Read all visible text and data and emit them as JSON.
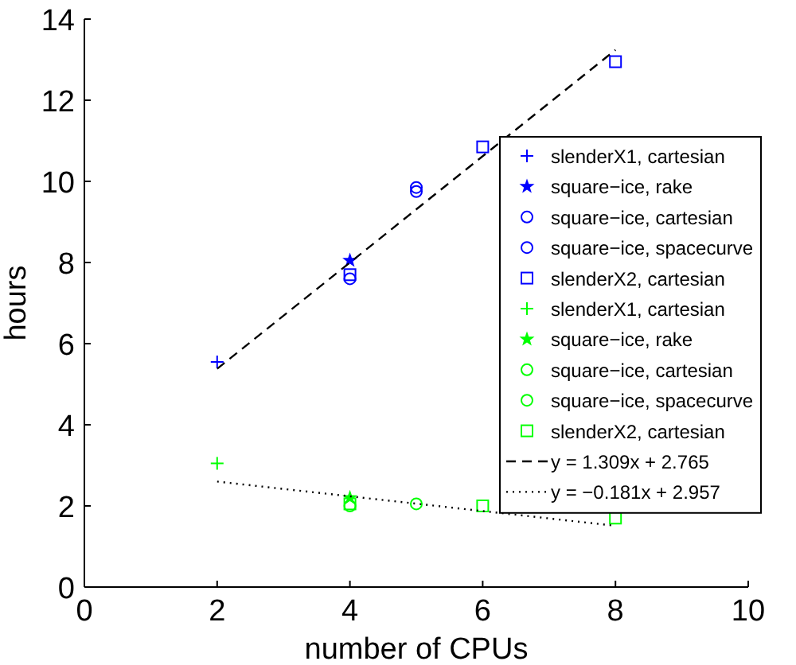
{
  "chart_data": {
    "type": "scatter",
    "xlabel": "number of CPUs",
    "ylabel": "hours",
    "xlim": [
      0,
      10
    ],
    "xticks": [
      0,
      2,
      4,
      6,
      8,
      10
    ],
    "ylim": [
      0,
      14
    ],
    "yticks": [
      0,
      2,
      4,
      6,
      8,
      10,
      12,
      14
    ],
    "grid": false,
    "legend": "right",
    "series": [
      {
        "name": "slenderX1, cartesian",
        "color": "#0000ff",
        "marker": "cross",
        "x": [
          2
        ],
        "values": [
          5.55
        ]
      },
      {
        "name": "square−ice, rake",
        "color": "#0000ff",
        "marker": "star",
        "x": [
          4
        ],
        "values": [
          8.05
        ]
      },
      {
        "name": "square−ice, cartesian",
        "color": "#0000ff",
        "marker": "circle",
        "x": [
          4
        ],
        "values": [
          7.6
        ]
      },
      {
        "name": "square−ice, spacecurve",
        "color": "#0000ff",
        "marker": "circle",
        "x": [
          5,
          5
        ],
        "values": [
          9.75,
          9.85
        ]
      },
      {
        "name": "slenderX2, cartesian",
        "color": "#0000ff",
        "marker": "square",
        "x": [
          4,
          6,
          8
        ],
        "values": [
          7.7,
          10.85,
          12.95
        ]
      },
      {
        "name": "slenderX1, cartesian",
        "color": "#00ff00",
        "marker": "cross",
        "x": [
          2
        ],
        "values": [
          3.05
        ]
      },
      {
        "name": "square−ice, rake",
        "color": "#00ff00",
        "marker": "star",
        "x": [
          4
        ],
        "values": [
          2.2
        ]
      },
      {
        "name": "square−ice, cartesian",
        "color": "#00ff00",
        "marker": "circle",
        "x": [
          4
        ],
        "values": [
          2.0
        ]
      },
      {
        "name": "square−ice, spacecurve",
        "color": "#00ff00",
        "marker": "circle",
        "x": [
          5
        ],
        "values": [
          2.05
        ]
      },
      {
        "name": "slenderX2, cartesian",
        "color": "#00ff00",
        "marker": "square",
        "x": [
          4,
          6,
          8
        ],
        "values": [
          2.05,
          2.0,
          1.7
        ]
      },
      {
        "name": "y = 1.309x + 2.765",
        "type": "line",
        "color": "#000000",
        "line_style": "dashed",
        "marker": "none",
        "x": [
          2,
          8
        ],
        "values": [
          5.38,
          13.24
        ]
      },
      {
        "name": "y = −0.181x + 2.957",
        "type": "line",
        "color": "#000000",
        "line_style": "dotted",
        "marker": "none",
        "x": [
          2,
          8
        ],
        "values": [
          2.6,
          1.51
        ]
      }
    ]
  }
}
